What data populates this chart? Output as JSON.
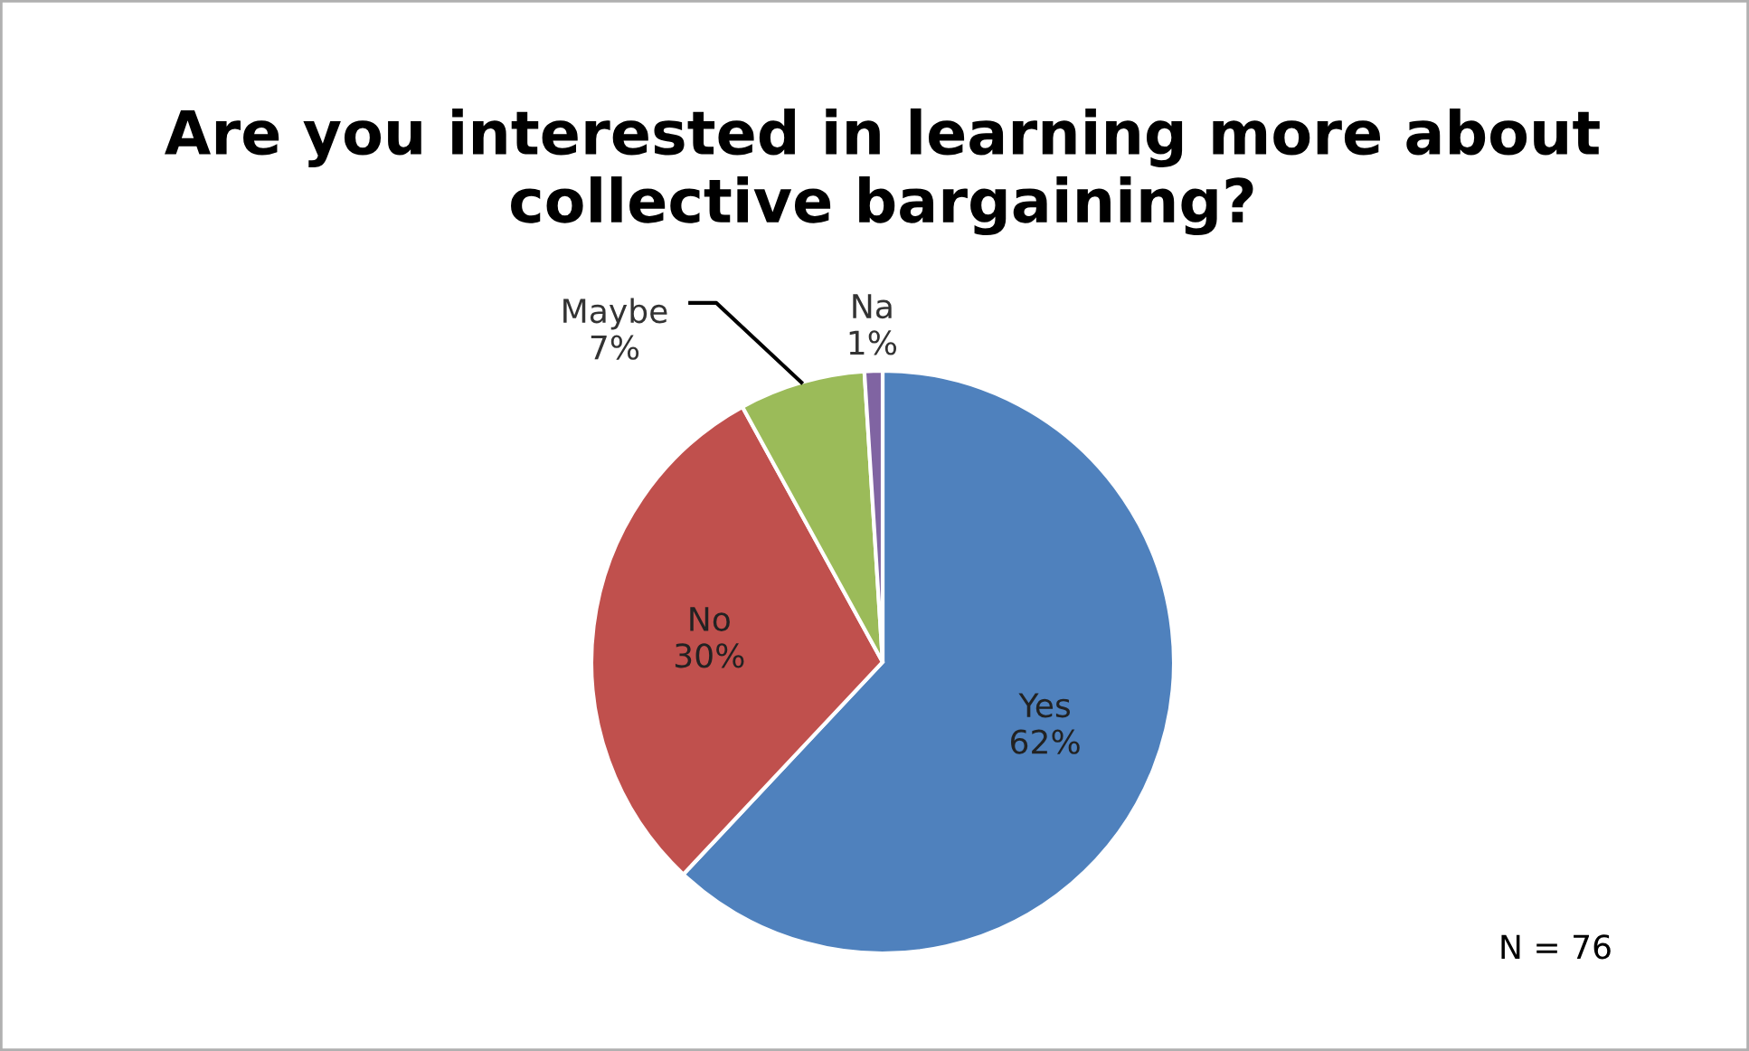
{
  "chart_data": {
    "type": "pie",
    "title": "Are you interested in learning more about collective bargaining?",
    "categories": [
      "Yes",
      "No",
      "Maybe",
      "Na"
    ],
    "values": [
      62,
      30,
      7,
      1
    ],
    "value_labels": [
      "62%",
      "30%",
      "7%",
      "1%"
    ],
    "colors": [
      "#4f81bd",
      "#c0504d",
      "#9bbb59",
      "#8064a2"
    ],
    "annotations": [
      "N = 76"
    ]
  }
}
